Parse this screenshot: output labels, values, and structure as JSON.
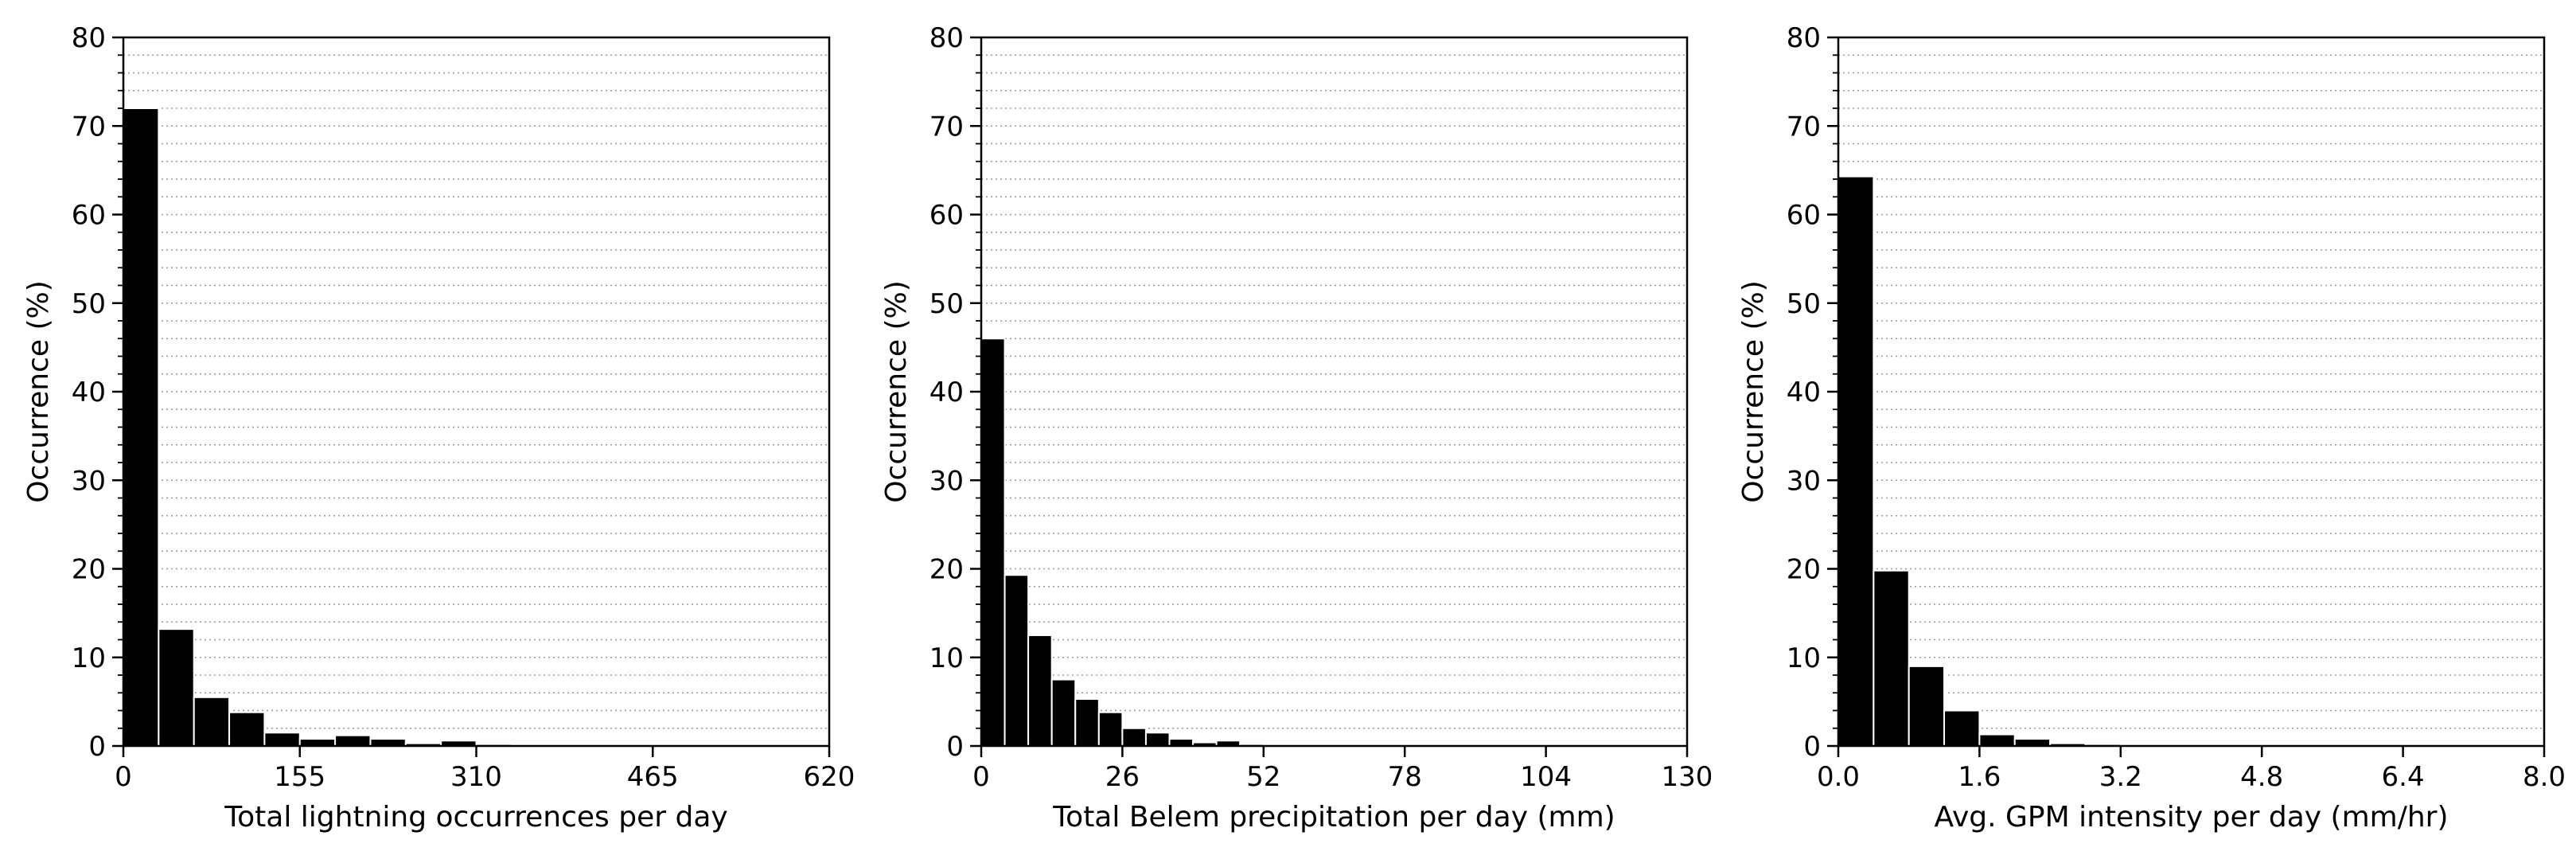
{
  "chart_data": [
    {
      "type": "bar",
      "title": "",
      "xlabel": "Total lightning occurrences per day",
      "ylabel": "Occurrence (%)",
      "xlim": [
        0,
        620
      ],
      "ylim": [
        0,
        80
      ],
      "xticks": [
        0,
        155,
        310,
        465,
        620
      ],
      "xtick_labels": [
        "0",
        "155",
        "310",
        "465",
        "620"
      ],
      "yticks": [
        0,
        10,
        20,
        30,
        40,
        50,
        60,
        70,
        80
      ],
      "ytick_labels": [
        "0",
        "10",
        "20",
        "30",
        "40",
        "50",
        "60",
        "70",
        "80"
      ],
      "grid": "horizontal dotted",
      "bin_width": 31,
      "bin_start": 0,
      "values": [
        72.0,
        13.2,
        5.5,
        3.8,
        1.5,
        0.8,
        1.2,
        0.8,
        0.3,
        0.6,
        0.2,
        0.15,
        0.1,
        0,
        0,
        0,
        0,
        0,
        0,
        0
      ],
      "bar_color": "#000000",
      "edge_color": "#ffffff"
    },
    {
      "type": "bar",
      "title": "",
      "xlabel": "Total Belem precipitation per day (mm)",
      "ylabel": "Occurrence (%)",
      "xlim": [
        0,
        130
      ],
      "ylim": [
        0,
        80
      ],
      "xticks": [
        0,
        26,
        52,
        78,
        104,
        130
      ],
      "xtick_labels": [
        "0",
        "26",
        "52",
        "78",
        "104",
        "130"
      ],
      "yticks": [
        0,
        10,
        20,
        30,
        40,
        50,
        60,
        70,
        80
      ],
      "ytick_labels": [
        "0",
        "10",
        "20",
        "30",
        "40",
        "50",
        "60",
        "70",
        "80"
      ],
      "grid": "horizontal dotted",
      "bin_width": 4.333,
      "bin_start": 0,
      "values": [
        46.0,
        19.3,
        12.5,
        7.5,
        5.3,
        3.8,
        2.0,
        1.5,
        0.8,
        0.4,
        0.6,
        0.2,
        0.1,
        0.1,
        0.05,
        0.05,
        0.05,
        0.1,
        0.1,
        0.05,
        0,
        0,
        0,
        0,
        0,
        0,
        0,
        0,
        0,
        0
      ],
      "bar_color": "#000000",
      "edge_color": "#ffffff"
    },
    {
      "type": "bar",
      "title": "",
      "xlabel": "Avg. GPM intensity per day (mm/hr)",
      "ylabel": "Occurrence (%)",
      "xlim": [
        0,
        8
      ],
      "ylim": [
        0,
        80
      ],
      "xticks": [
        0.0,
        1.6,
        3.2,
        4.8,
        6.4,
        8.0
      ],
      "xtick_labels": [
        "0.0",
        "1.6",
        "3.2",
        "4.8",
        "6.4",
        "8.0"
      ],
      "yticks": [
        0,
        10,
        20,
        30,
        40,
        50,
        60,
        70,
        80
      ],
      "ytick_labels": [
        "0",
        "10",
        "20",
        "30",
        "40",
        "50",
        "60",
        "70",
        "80"
      ],
      "grid": "horizontal dotted",
      "bin_width": 0.4,
      "bin_start": 0,
      "values": [
        64.3,
        19.8,
        9.0,
        4.0,
        1.3,
        0.8,
        0.3,
        0.2,
        0.1,
        0.05,
        0,
        0,
        0,
        0,
        0,
        0,
        0,
        0,
        0,
        0
      ],
      "bar_color": "#000000",
      "edge_color": "#ffffff"
    }
  ]
}
